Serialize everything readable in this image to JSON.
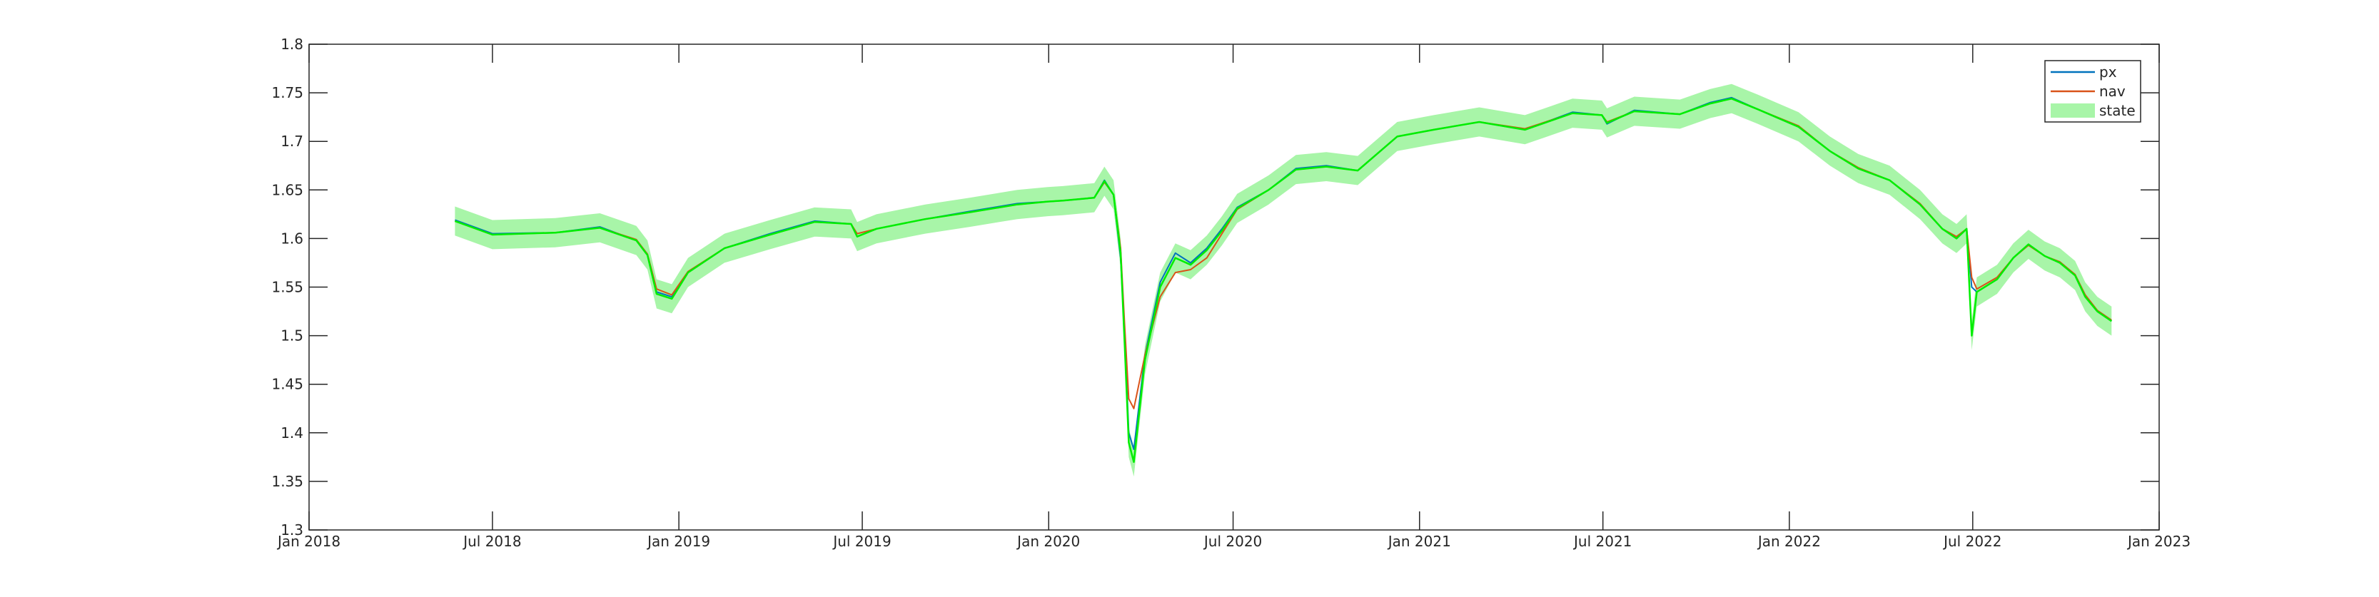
{
  "chart_data": {
    "type": "line",
    "title": "",
    "xlabel": "",
    "ylabel": "",
    "x_axis": {
      "type": "date",
      "range": [
        "2018-01-01",
        "2023-01-01"
      ],
      "ticks": [
        "2018-01-01",
        "2018-07-01",
        "2019-01-01",
        "2019-07-01",
        "2020-01-01",
        "2020-07-01",
        "2021-01-01",
        "2021-07-01",
        "2022-01-01",
        "2022-07-01",
        "2023-01-01"
      ],
      "tick_labels": [
        "Jan 2018",
        "Jul 2018",
        "Jan 2019",
        "Jul 2019",
        "Jan 2020",
        "Jul 2020",
        "Jan 2021",
        "Jul 2021",
        "Jan 2022",
        "Jul 2022",
        "Jan 2023"
      ]
    },
    "y_axis": {
      "range": [
        1.3,
        1.8
      ],
      "ticks": [
        1.3,
        1.35,
        1.4,
        1.45,
        1.5,
        1.55,
        1.6,
        1.65,
        1.7,
        1.75,
        1.8
      ],
      "tick_labels": [
        "1.3",
        "1.35",
        "1.4",
        "1.45",
        "1.5",
        "1.55",
        "1.6",
        "1.65",
        "1.7",
        "1.75",
        "1.8"
      ]
    },
    "grid": false,
    "box": true,
    "legend": {
      "placement": "top-right",
      "entries": [
        "px",
        "nav",
        "state"
      ]
    },
    "colors": {
      "px": "#0072bd",
      "nav": "#d95319",
      "state_line": "#00ee00",
      "state_band": "#a8f5a8",
      "axis": "#262626"
    },
    "x": [
      "2018-05-25",
      "2018-07-01",
      "2018-09-01",
      "2018-10-15",
      "2018-11-20",
      "2018-12-01",
      "2018-12-10",
      "2018-12-25",
      "2019-01-10",
      "2019-02-15",
      "2019-04-01",
      "2019-05-15",
      "2019-06-20",
      "2019-06-26",
      "2019-07-15",
      "2019-09-01",
      "2019-10-15",
      "2019-12-01",
      "2019-12-31",
      "2020-01-15",
      "2020-02-15",
      "2020-02-25",
      "2020-03-05",
      "2020-03-12",
      "2020-03-16",
      "2020-03-20",
      "2020-03-25",
      "2020-04-05",
      "2020-04-20",
      "2020-05-05",
      "2020-05-20",
      "2020-06-05",
      "2020-06-20",
      "2020-07-05",
      "2020-08-05",
      "2020-09-01",
      "2020-10-01",
      "2020-11-01",
      "2020-12-10",
      "2021-01-15",
      "2021-03-01",
      "2021-04-15",
      "2021-06-01",
      "2021-06-30",
      "2021-07-05",
      "2021-08-01",
      "2021-09-15",
      "2021-10-15",
      "2021-11-05",
      "2021-12-01",
      "2022-01-10",
      "2022-02-10",
      "2022-03-10",
      "2022-04-10",
      "2022-05-10",
      "2022-06-01",
      "2022-06-15",
      "2022-06-25",
      "2022-06-30",
      "2022-07-05",
      "2022-07-25",
      "2022-08-10",
      "2022-08-25",
      "2022-09-10",
      "2022-09-25",
      "2022-10-10",
      "2022-10-20",
      "2022-11-01",
      "2022-11-15"
    ],
    "series": [
      {
        "name": "px",
        "values": [
          1.619,
          1.605,
          1.606,
          1.612,
          1.598,
          1.583,
          1.545,
          1.54,
          1.565,
          1.59,
          1.605,
          1.618,
          1.615,
          1.602,
          1.61,
          1.62,
          1.628,
          1.636,
          1.638,
          1.639,
          1.642,
          1.66,
          1.645,
          1.58,
          1.5,
          1.4,
          1.383,
          1.48,
          1.555,
          1.585,
          1.575,
          1.59,
          1.61,
          1.632,
          1.65,
          1.672,
          1.675,
          1.67,
          1.705,
          1.712,
          1.72,
          1.712,
          1.73,
          1.727,
          1.718,
          1.732,
          1.728,
          1.74,
          1.745,
          1.733,
          1.715,
          1.69,
          1.672,
          1.66,
          1.635,
          1.61,
          1.6,
          1.61,
          1.55,
          1.545,
          1.558,
          1.58,
          1.594,
          1.582,
          1.575,
          1.562,
          1.54,
          1.525,
          1.515
        ]
      },
      {
        "name": "nav",
        "values": [
          1.618,
          1.604,
          1.606,
          1.611,
          1.599,
          1.584,
          1.548,
          1.542,
          1.566,
          1.59,
          1.604,
          1.617,
          1.615,
          1.605,
          1.61,
          1.62,
          1.627,
          1.635,
          1.638,
          1.639,
          1.642,
          1.658,
          1.645,
          1.59,
          1.51,
          1.435,
          1.425,
          1.48,
          1.54,
          1.565,
          1.568,
          1.58,
          1.605,
          1.63,
          1.65,
          1.671,
          1.674,
          1.67,
          1.705,
          1.712,
          1.72,
          1.713,
          1.729,
          1.727,
          1.72,
          1.731,
          1.728,
          1.739,
          1.744,
          1.733,
          1.716,
          1.69,
          1.673,
          1.66,
          1.636,
          1.61,
          1.602,
          1.61,
          1.56,
          1.548,
          1.56,
          1.58,
          1.593,
          1.582,
          1.576,
          1.563,
          1.542,
          1.526,
          1.516
        ]
      },
      {
        "name": "state",
        "values": [
          1.618,
          1.604,
          1.606,
          1.611,
          1.598,
          1.583,
          1.543,
          1.538,
          1.565,
          1.59,
          1.604,
          1.617,
          1.615,
          1.602,
          1.61,
          1.62,
          1.627,
          1.635,
          1.638,
          1.639,
          1.642,
          1.659,
          1.645,
          1.585,
          1.49,
          1.39,
          1.37,
          1.475,
          1.55,
          1.58,
          1.573,
          1.588,
          1.608,
          1.631,
          1.65,
          1.671,
          1.674,
          1.67,
          1.705,
          1.712,
          1.72,
          1.712,
          1.729,
          1.727,
          1.719,
          1.731,
          1.728,
          1.739,
          1.744,
          1.733,
          1.715,
          1.69,
          1.672,
          1.66,
          1.635,
          1.61,
          1.6,
          1.61,
          1.5,
          1.545,
          1.558,
          1.58,
          1.594,
          1.582,
          1.575,
          1.562,
          1.54,
          1.525,
          1.515
        ],
        "band_halfwidth": 0.015
      }
    ]
  }
}
